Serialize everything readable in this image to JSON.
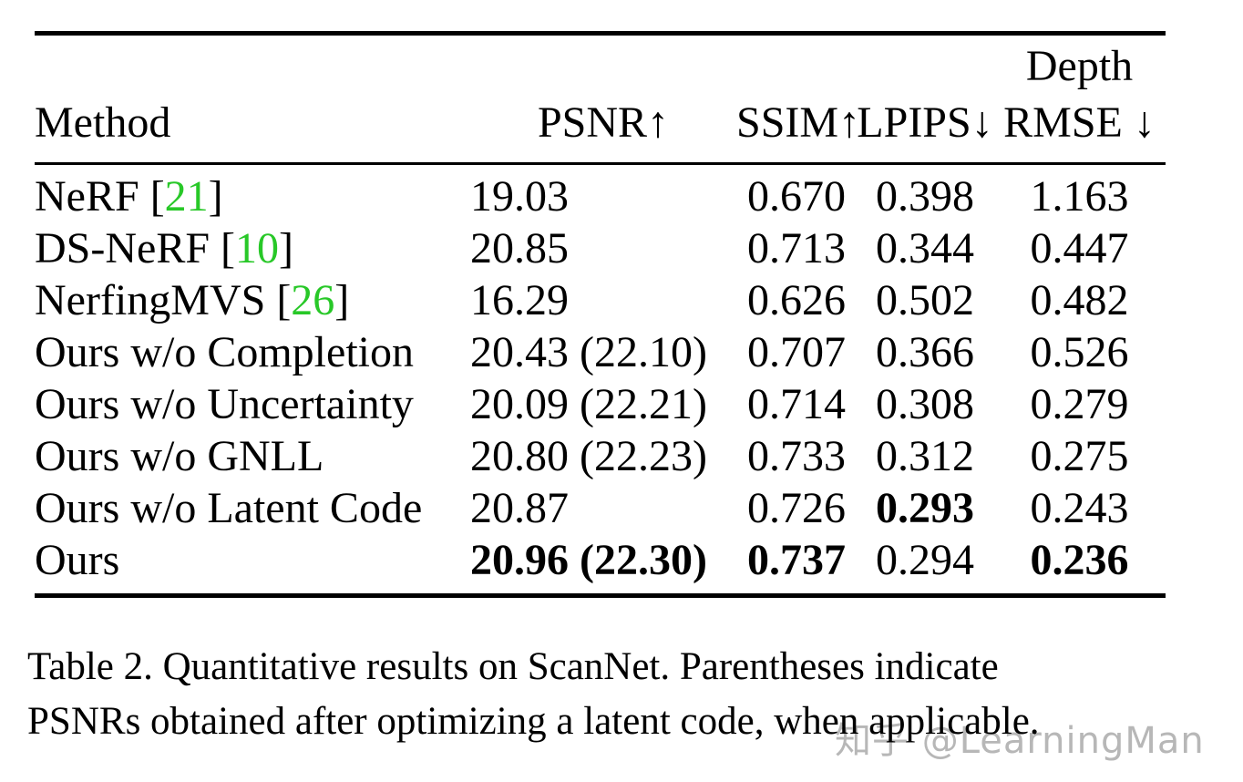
{
  "colors": {
    "citation_green": "#28c828",
    "text": "#000000",
    "watermark_gray": "#b7b7b7",
    "background": "#ffffff"
  },
  "table": {
    "header": {
      "depth_label": "Depth",
      "method": "Method",
      "psnr": "PSNR↑",
      "ssim": "SSIM↑",
      "lpips": "LPIPS↓",
      "rmse": "RMSE ↓"
    },
    "rows": [
      {
        "method": "NeRF",
        "cite_open": " [",
        "cite": "21",
        "cite_close": "]",
        "psnr": "19.03",
        "ssim": "0.670",
        "lpips": "0.398",
        "rmse": "1.163"
      },
      {
        "method": "DS-NeRF",
        "cite_open": " [",
        "cite": "10",
        "cite_close": "]",
        "psnr": "20.85",
        "ssim": "0.713",
        "lpips": "0.344",
        "rmse": "0.447"
      },
      {
        "method": "NerfingMVS",
        "cite_open": " [",
        "cite": "26",
        "cite_close": "]",
        "psnr": "16.29",
        "ssim": "0.626",
        "lpips": "0.502",
        "rmse": "0.482"
      },
      {
        "method": "Ours w/o Completion",
        "psnr": "20.43 (22.10)",
        "ssim": "0.707",
        "lpips": "0.366",
        "rmse": "0.526"
      },
      {
        "method": "Ours w/o Uncertainty",
        "psnr": "20.09 (22.21)",
        "ssim": "0.714",
        "lpips": "0.308",
        "rmse": "0.279"
      },
      {
        "method": "Ours w/o GNLL",
        "psnr": "20.80 (22.23)",
        "ssim": "0.733",
        "lpips": "0.312",
        "rmse": "0.275"
      },
      {
        "method": "Ours w/o Latent Code",
        "psnr": "20.87",
        "ssim": "0.726",
        "lpips": "0.293",
        "rmse": "0.243",
        "lpips_bold": true
      },
      {
        "method": "Ours",
        "psnr": "20.96 (22.30)",
        "ssim": "0.737",
        "lpips": "0.294",
        "rmse": "0.236",
        "psnr_bold": true,
        "ssim_bold": true,
        "rmse_bold": true
      }
    ]
  },
  "caption": {
    "line1": "Table 2.  Quantitative results on ScanNet.  Parentheses indicate",
    "line2": "PSNRs obtained after optimizing a latent code, when applicable."
  },
  "watermark": {
    "text": "知乎 @LearningMan"
  }
}
